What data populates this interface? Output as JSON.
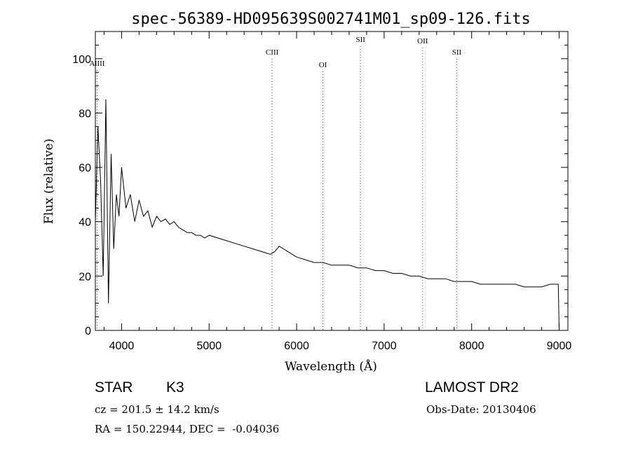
{
  "chart_data": {
    "type": "line",
    "title": "spec-56389-HD095639S002741M01_sp09-126.fits",
    "xlabel": "Wavelength (Å)",
    "ylabel": "Flux (relative)",
    "xlim": [
      3700,
      9100
    ],
    "ylim": [
      0,
      110
    ],
    "xticks": [
      4000,
      5000,
      6000,
      7000,
      8000,
      9000
    ],
    "yticks": [
      0,
      20,
      40,
      60,
      80,
      100
    ],
    "grid": false,
    "line_markers": [
      {
        "label": "AlIII",
        "x": 3720
      },
      {
        "label": "CIII",
        "x": 5720
      },
      {
        "label": "OI",
        "x": 6300
      },
      {
        "label": "SII",
        "x": 6730
      },
      {
        "label": "OII",
        "x": 7440
      },
      {
        "label": "SII",
        "x": 7830
      }
    ],
    "series": [
      {
        "x": [
          3700,
          3730,
          3760,
          3790,
          3820,
          3850,
          3880,
          3910,
          3940,
          3970,
          4000,
          4050,
          4100,
          4150,
          4200,
          4250,
          4300,
          4350,
          4400,
          4450,
          4500,
          4550,
          4600,
          4650,
          4700,
          4750,
          4800,
          4850,
          4900,
          4950,
          5000,
          5100,
          5200,
          5300,
          5400,
          5500,
          5600,
          5700,
          5750,
          5800,
          5850,
          5900,
          5950,
          6000,
          6100,
          6200,
          6300,
          6400,
          6500,
          6600,
          6700,
          6800,
          6900,
          7000,
          7100,
          7200,
          7300,
          7400,
          7500,
          7600,
          7700,
          7800,
          7900,
          8000,
          8100,
          8200,
          8300,
          8400,
          8500,
          8600,
          8700,
          8800,
          8900,
          8990,
          9000
        ],
        "y": [
          40,
          75,
          55,
          20,
          85,
          10,
          65,
          30,
          50,
          42,
          60,
          45,
          50,
          40,
          48,
          42,
          44,
          38,
          42,
          40,
          41,
          39,
          40,
          38,
          37,
          36,
          36,
          35,
          35,
          34,
          35,
          34,
          33,
          32,
          31,
          30,
          29,
          28,
          29,
          31,
          30,
          29,
          28,
          27,
          26,
          25,
          25,
          24,
          24,
          24,
          23,
          23,
          22,
          22,
          21,
          21,
          20,
          20,
          19,
          19,
          19,
          18,
          18,
          18,
          17,
          17,
          17,
          17,
          17,
          16,
          16,
          16,
          17,
          17,
          0
        ]
      }
    ]
  },
  "info": {
    "object_class": "STAR",
    "subclass": "K3",
    "survey": "LAMOST DR2",
    "cz": "cz = 201.5 ± 14.2 km/s",
    "obs_date": "Obs-Date: 20130406",
    "coords": "RA = 150.22944, DEC =  -0.04036"
  }
}
